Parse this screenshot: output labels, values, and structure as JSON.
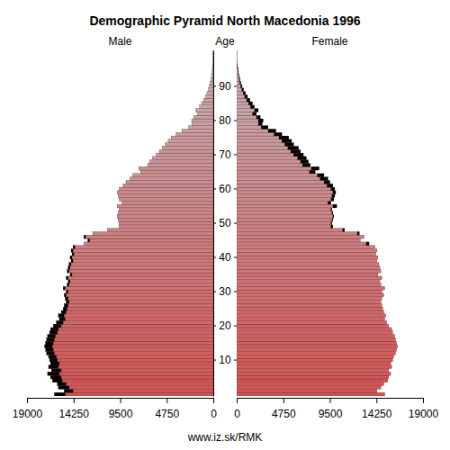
{
  "chart_data": {
    "type": "bar",
    "orientation": "horizontal",
    "stacked": false,
    "title": "Demographic Pyramid North Macedonia 1996",
    "y_label": "Age",
    "source": "www.iz.sk/RMK",
    "categories": [
      null,
      null,
      null,
      null,
      null,
      null,
      null,
      null,
      null,
      null,
      "10",
      null,
      null,
      null,
      null,
      null,
      null,
      null,
      null,
      null,
      "20",
      null,
      null,
      null,
      null,
      null,
      null,
      null,
      null,
      null,
      "30",
      null,
      null,
      null,
      null,
      null,
      null,
      null,
      null,
      null,
      "40",
      null,
      null,
      null,
      null,
      null,
      null,
      null,
      null,
      null,
      "50",
      null,
      null,
      null,
      null,
      null,
      null,
      null,
      null,
      null,
      "60",
      null,
      null,
      null,
      null,
      null,
      null,
      null,
      null,
      null,
      "70",
      null,
      null,
      null,
      null,
      null,
      null,
      null,
      null,
      null,
      "80",
      null,
      null,
      null,
      null,
      null,
      null,
      null,
      null,
      null,
      "90",
      null,
      null,
      null,
      null,
      null,
      null,
      null,
      null,
      null,
      null
    ],
    "xlim": [
      0,
      19000
    ],
    "xticks": [
      0,
      4750,
      9500,
      14250,
      19000
    ],
    "series": [
      {
        "name": "Male",
        "color": "#d65151",
        "values": [
          16200,
          15200,
          15800,
          15900,
          16400,
          16600,
          16900,
          16500,
          16800,
          16600,
          16700,
          16800,
          17000,
          17100,
          17200,
          17100,
          17000,
          16900,
          16700,
          16600,
          16300,
          16000,
          15700,
          15800,
          15500,
          15300,
          15200,
          15000,
          15100,
          15200,
          15000,
          15300,
          14900,
          14800,
          15000,
          14600,
          14900,
          14800,
          14700,
          14500,
          14600,
          14400,
          14500,
          14300,
          13200,
          12800,
          13200,
          12300,
          10800,
          9600,
          9600,
          9700,
          9800,
          9700,
          9600,
          9800,
          9300,
          9600,
          9700,
          9800,
          9600,
          9200,
          8900,
          8500,
          8200,
          7400,
          7600,
          6700,
          6500,
          6200,
          5800,
          5500,
          5200,
          4900,
          4600,
          4300,
          3800,
          3200,
          2500,
          2200,
          2200,
          2000,
          1600,
          1800,
          1400,
          1200,
          1000,
          800,
          650,
          500,
          400,
          300,
          240,
          180,
          130,
          90,
          60,
          40,
          30,
          20,
          15
        ]
      },
      {
        "name": "Female",
        "color": "#d65151",
        "values": [
          15100,
          14300,
          14700,
          15000,
          15400,
          15500,
          15700,
          15500,
          15800,
          15700,
          15900,
          16000,
          16200,
          16300,
          16400,
          16300,
          16200,
          16100,
          15900,
          15800,
          15500,
          15300,
          15100,
          15200,
          15000,
          14900,
          14800,
          14700,
          14800,
          15000,
          14800,
          15100,
          14700,
          14600,
          14800,
          14400,
          14700,
          14600,
          14500,
          14300,
          14400,
          14200,
          14300,
          14100,
          13500,
          12600,
          13000,
          12500,
          11000,
          9800,
          9700,
          9800,
          9900,
          9800,
          9700,
          10200,
          9600,
          9900,
          10000,
          10100,
          10000,
          9800,
          9500,
          9300,
          8900,
          8000,
          8400,
          7500,
          7300,
          7100,
          6800,
          6500,
          6300,
          5800,
          5600,
          5300,
          4600,
          4000,
          3200,
          2600,
          2700,
          2400,
          2000,
          2200,
          1800,
          1600,
          1350,
          1100,
          900,
          700,
          550,
          420,
          330,
          250,
          180,
          130,
          90,
          60,
          40,
          30,
          20
        ]
      }
    ]
  }
}
